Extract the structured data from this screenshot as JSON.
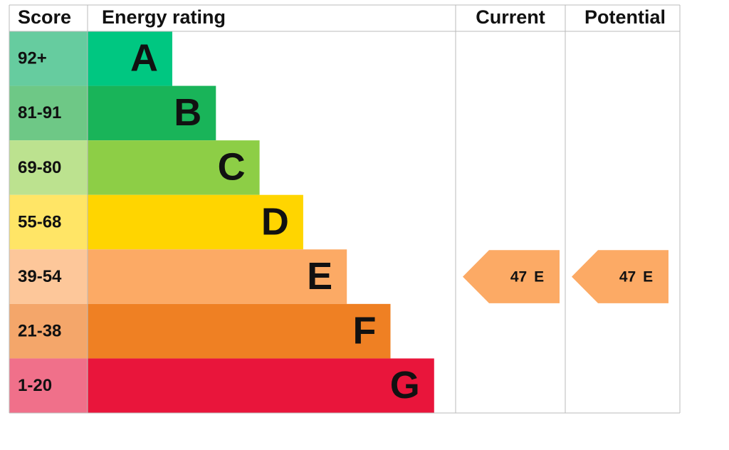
{
  "header": {
    "score": "Score",
    "rating": "Energy rating",
    "current": "Current",
    "potential": "Potential"
  },
  "rows": [
    {
      "score": "92+",
      "letter": "A",
      "color": "#00c781",
      "score_color": "#66cc9f"
    },
    {
      "score": "81-91",
      "letter": "B",
      "color": "#19b459",
      "score_color": "#6ec886"
    },
    {
      "score": "69-80",
      "letter": "C",
      "color": "#8dce46",
      "score_color": "#bce28f"
    },
    {
      "score": "55-68",
      "letter": "D",
      "color": "#ffd500",
      "score_color": "#ffe566"
    },
    {
      "score": "39-54",
      "letter": "E",
      "color": "#fcaa65",
      "score_color": "#fdc79a"
    },
    {
      "score": "21-38",
      "letter": "F",
      "color": "#ef8023",
      "score_color": "#f4a66a"
    },
    {
      "score": "1-20",
      "letter": "G",
      "color": "#e9153b",
      "score_color": "#f0708a"
    }
  ],
  "current": {
    "score": 47,
    "band": "E"
  },
  "potential": {
    "score": 47,
    "band": "E"
  }
}
